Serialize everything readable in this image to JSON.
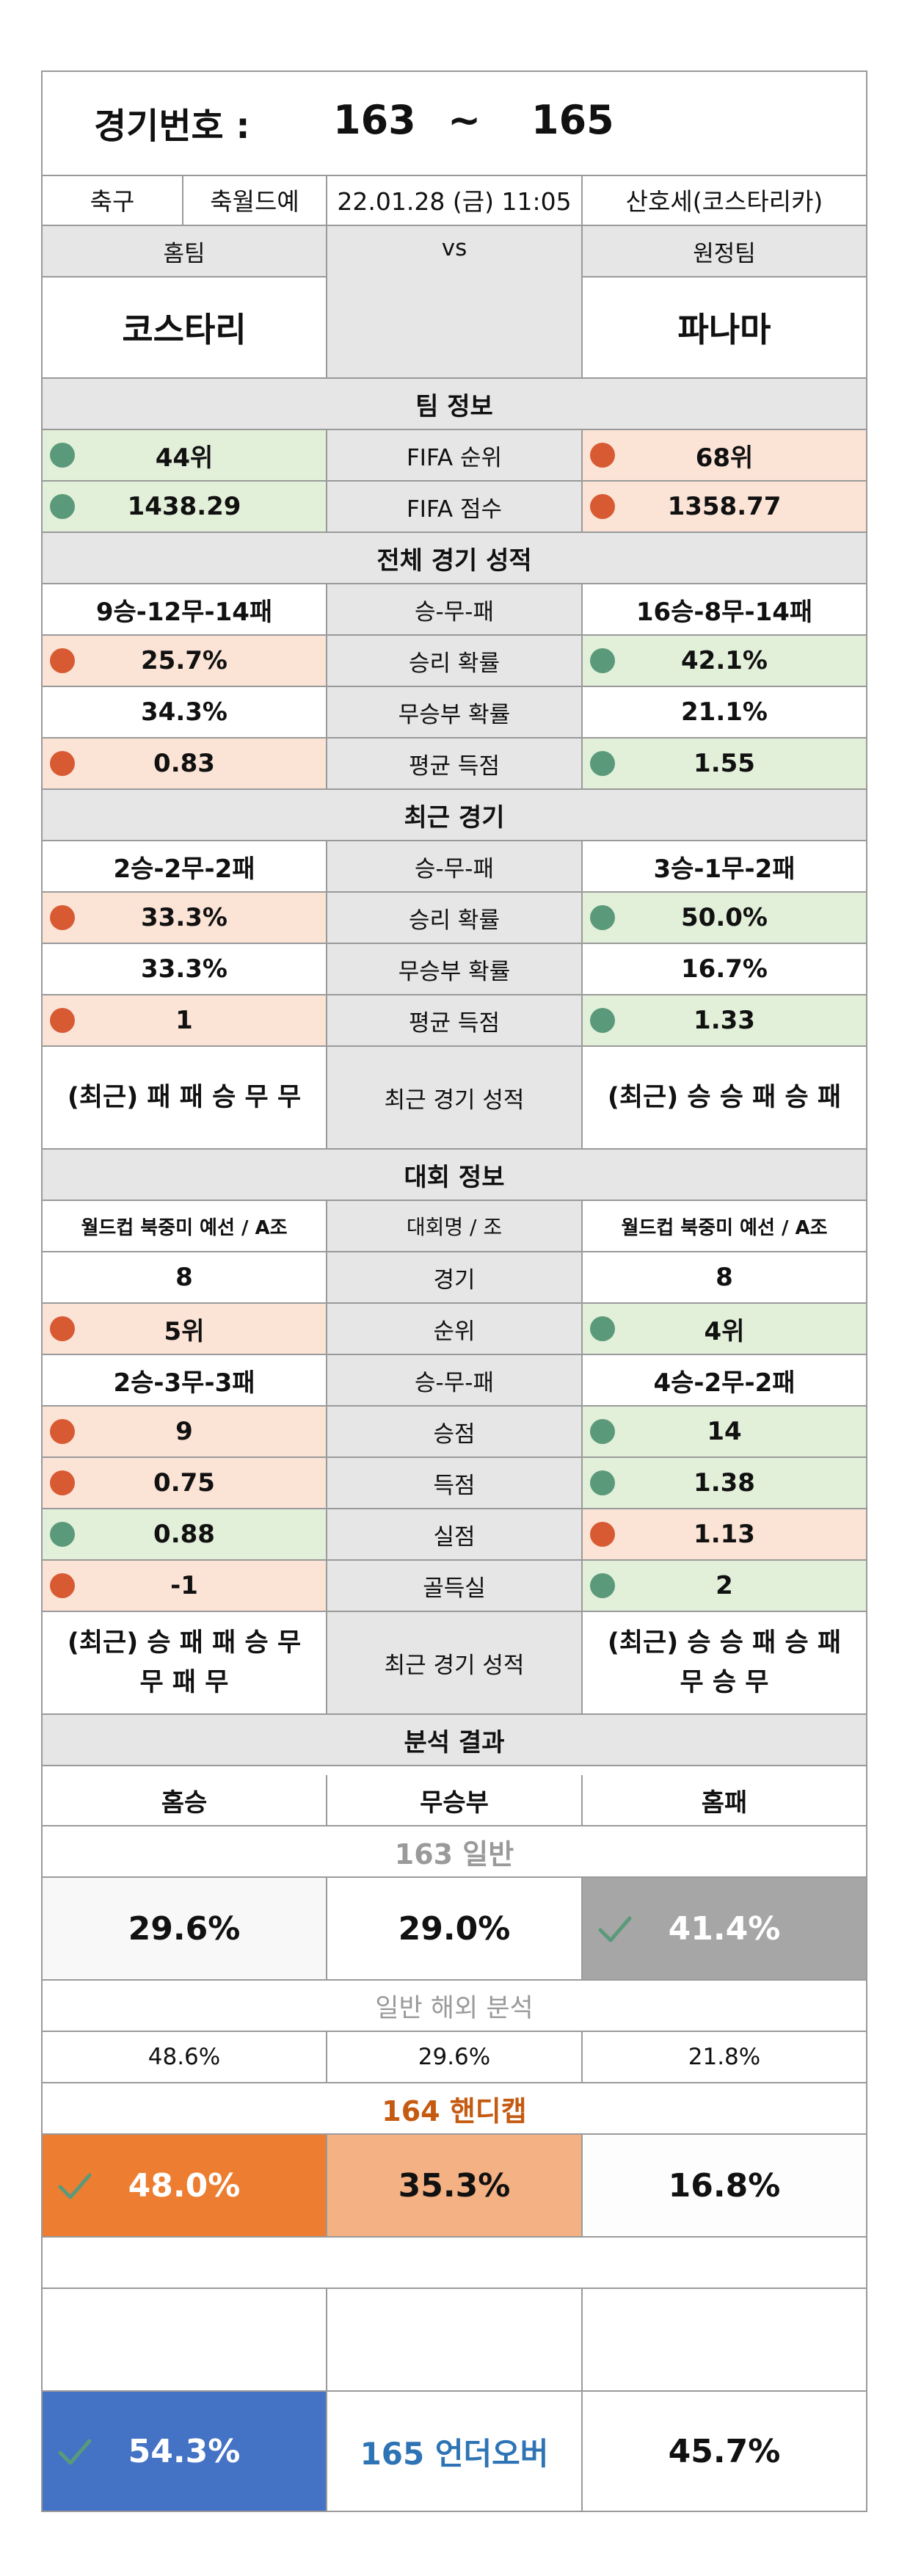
{
  "header": {
    "label": "경기번호 :",
    "from": "163",
    "sep": "~",
    "to": "165"
  },
  "info": {
    "sport": "축구",
    "league": "축월드예",
    "datetime": "22.01.28 (금) 11:05",
    "venue": "산호세(코스타리카)"
  },
  "teams": {
    "home_label": "홈팀",
    "away_label": "원정팀",
    "home": "코스타리",
    "vs": "vs",
    "away": "파나마"
  },
  "sections": {
    "team_info": "팀 정보",
    "overall": "전체 경기 성적",
    "recent": "최근 경기",
    "tournament": "대회 정보",
    "analysis": "분석 결과"
  },
  "team_info": [
    {
      "home": "44위",
      "label": "FIFA 순위",
      "away": "68위",
      "home_status": "good",
      "away_status": "bad"
    },
    {
      "home": "1438.29",
      "label": "FIFA 점수",
      "away": "1358.77",
      "home_status": "good",
      "away_status": "bad"
    }
  ],
  "overall": [
    {
      "home": "9승-12무-14패",
      "label": "승-무-패",
      "away": "16승-8무-14패"
    },
    {
      "home": "25.7%",
      "label": "승리 확률",
      "away": "42.1%",
      "home_status": "bad",
      "away_status": "good"
    },
    {
      "home": "34.3%",
      "label": "무승부 확률",
      "away": "21.1%"
    },
    {
      "home": "0.83",
      "label": "평균 득점",
      "away": "1.55",
      "home_status": "bad",
      "away_status": "good"
    }
  ],
  "recent": [
    {
      "home": "2승-2무-2패",
      "label": "승-무-패",
      "away": "3승-1무-2패"
    },
    {
      "home": "33.3%",
      "label": "승리 확률",
      "away": "50.0%",
      "home_status": "bad",
      "away_status": "good"
    },
    {
      "home": "33.3%",
      "label": "무승부 확률",
      "away": "16.7%"
    },
    {
      "home": "1",
      "label": "평균 득점",
      "away": "1.33",
      "home_status": "bad",
      "away_status": "good"
    }
  ],
  "recent_form": {
    "home": "(최근) 패 패 승 무 무",
    "label": "최근 경기 성적",
    "away": "(최근) 승 승 패 승 패"
  },
  "tournament": [
    {
      "home": "월드컵 북중미 예선 / A조",
      "label": "대회명 / 조",
      "away": "월드컵 북중미 예선 / A조"
    },
    {
      "home": "8",
      "label": "경기",
      "away": "8"
    },
    {
      "home": "5위",
      "label": "순위",
      "away": "4위",
      "home_status": "bad",
      "away_status": "good"
    },
    {
      "home": "2승-3무-3패",
      "label": "승-무-패",
      "away": "4승-2무-2패"
    },
    {
      "home": "9",
      "label": "승점",
      "away": "14",
      "home_status": "bad",
      "away_status": "good"
    },
    {
      "home": "0.75",
      "label": "득점",
      "away": "1.38",
      "home_status": "bad",
      "away_status": "good"
    },
    {
      "home": "0.88",
      "label": "실점",
      "away": "1.13",
      "home_status": "good",
      "away_status": "bad"
    },
    {
      "home": "-1",
      "label": "골득실",
      "away": "2",
      "home_status": "bad",
      "away_status": "good"
    }
  ],
  "tournament_form": {
    "home": "(최근) 승 패 패 승 무 무 패 무",
    "label": "최근 경기 성적",
    "away": "(최근) 승 승 패 승 패 무 승 무"
  },
  "analysis": {
    "headers": [
      "홈승",
      "무승부",
      "홈패"
    ],
    "general_title": "163 일반",
    "general": [
      "29.6%",
      "29.0%",
      "41.4%"
    ],
    "overseas_title": "일반 해외 분석",
    "overseas": [
      "48.6%",
      "29.6%",
      "21.8%"
    ],
    "handicap_title": "164 핸디캡",
    "handicap": [
      "48.0%",
      "35.3%",
      "16.8%"
    ],
    "underover_label": "165 언더오버",
    "underover": [
      "54.3%",
      "45.7%"
    ]
  },
  "colors": {
    "good": "#5a9a7a",
    "bad": "#d85a33",
    "pick_grey": "#a6a6a6",
    "pick_orange": "#ed7d31",
    "pick_light_orange": "#f4b183",
    "pick_blue": "#4472c4"
  }
}
